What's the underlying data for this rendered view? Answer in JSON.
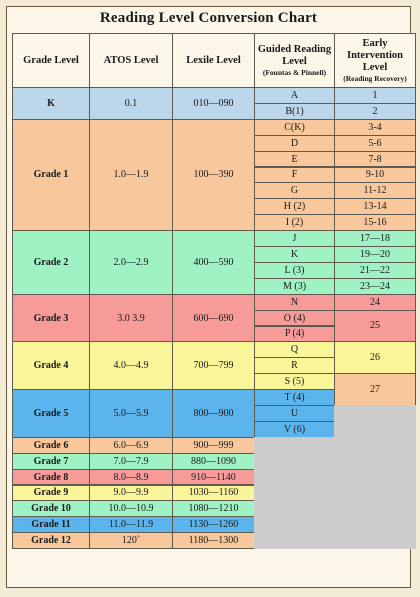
{
  "title": "Reading Level Conversion Chart",
  "headers": {
    "grade": "Grade Level",
    "atos": "ATOS Level",
    "lexile": "Lexile Level",
    "guided_main": "Guided Reading Level",
    "guided_sub": "(Fountas & Pinnell)",
    "early_main": "Early Intervention Level",
    "early_sub": "(Reading Recovery)"
  },
  "colors": {
    "k": "#bcd6ec",
    "grade1": "#f8c79b",
    "grade2": "#9ef2c3",
    "grade3": "#f79b99",
    "grade4": "#fbf59a",
    "grade5": "#5bb5ec",
    "empty": "#cccccc"
  },
  "grades": [
    {
      "grade": "K",
      "atos": "0.1",
      "lexile": "010—090",
      "color": "k"
    },
    {
      "grade": "Grade 1",
      "atos": "1.0—1.9",
      "lexile": "100—390",
      "color": "grade1"
    },
    {
      "grade": "Grade 2",
      "atos": "2.0—2.9",
      "lexile": "400—590",
      "color": "grade2"
    },
    {
      "grade": "Grade 3",
      "atos": "3.0 3.9",
      "lexile": "600—690",
      "color": "grade3"
    },
    {
      "grade": "Grade 4",
      "atos": "4.0—4.9",
      "lexile": "700—799",
      "color": "grade4"
    },
    {
      "grade": "Grade 5",
      "atos": "5.0—5.9",
      "lexile": "800—900",
      "color": "grade5"
    },
    {
      "grade": "Grade 6",
      "atos": "6.0—6.9",
      "lexile": "900—999",
      "color": "grade1"
    },
    {
      "grade": "Grade 7",
      "atos": "7.0—7.9",
      "lexile": "880—1090",
      "color": "grade2"
    },
    {
      "grade": "Grade 8",
      "atos": "8.0—8.9",
      "lexile": "910—1140",
      "color": "grade3"
    },
    {
      "grade": "Grade 9",
      "atos": "9.0—9.9",
      "lexile": "1030—1160",
      "color": "grade4"
    },
    {
      "grade": "Grade 10",
      "atos": "10.0—10.9",
      "lexile": "1080—1210",
      "color": "grade2"
    },
    {
      "grade": "Grade 11",
      "atos": "11.0—11.9",
      "lexile": "1130—1260",
      "color": "grade5"
    },
    {
      "grade": "Grade 12",
      "atos": "120˚",
      "lexile": "1180—1300",
      "color": "grade1"
    }
  ],
  "guided": [
    {
      "label": "A",
      "color": "k"
    },
    {
      "label": "B(1)",
      "color": "k"
    },
    {
      "label": "C(K)",
      "color": "grade1"
    },
    {
      "label": "D",
      "color": "grade1"
    },
    {
      "label": "E",
      "color": "grade1"
    },
    {
      "label": "F",
      "color": "grade1"
    },
    {
      "label": "G",
      "color": "grade1"
    },
    {
      "label": "H (2)",
      "color": "grade1"
    },
    {
      "label": "I (2)",
      "color": "grade1"
    },
    {
      "label": "J",
      "color": "grade2"
    },
    {
      "label": "K",
      "color": "grade2"
    },
    {
      "label": "L (3)",
      "color": "grade2"
    },
    {
      "label": "M (3)",
      "color": "grade2"
    },
    {
      "label": "N",
      "color": "grade3"
    },
    {
      "label": "O (4)",
      "color": "grade3"
    },
    {
      "label": "P (4)",
      "color": "grade3"
    },
    {
      "label": "Q",
      "color": "grade4"
    },
    {
      "label": "R",
      "color": "grade4"
    },
    {
      "label": "S (5)",
      "color": "grade4"
    },
    {
      "label": "T (4)",
      "color": "grade5"
    },
    {
      "label": "U",
      "color": "grade5"
    },
    {
      "label": "V (6)",
      "color": "grade5"
    }
  ],
  "early": [
    {
      "label": "1",
      "color": "k"
    },
    {
      "label": "2",
      "color": "k"
    },
    {
      "label": "3-4",
      "color": "grade1"
    },
    {
      "label": "5-6",
      "color": "grade1"
    },
    {
      "label": "7-8",
      "color": "grade1"
    },
    {
      "label": "9-10",
      "color": "grade1"
    },
    {
      "label": "11-12",
      "color": "grade1"
    },
    {
      "label": "13-14",
      "color": "grade1"
    },
    {
      "label": "15-16",
      "color": "grade1"
    },
    {
      "label": "17—18",
      "color": "grade2"
    },
    {
      "label": "19—20",
      "color": "grade2"
    },
    {
      "label": "21—22",
      "color": "grade2"
    },
    {
      "label": "23—24",
      "color": "grade2"
    },
    {
      "label": "24",
      "color": "grade3"
    },
    {
      "label": "25",
      "color": "grade3"
    },
    {
      "label": "26",
      "color": "grade4"
    },
    {
      "label": "27",
      "color": "grade1"
    }
  ]
}
